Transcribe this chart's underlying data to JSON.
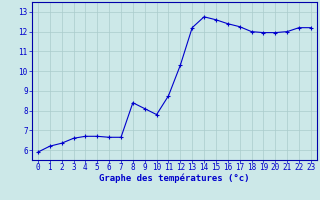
{
  "x": [
    0,
    1,
    2,
    3,
    4,
    5,
    6,
    7,
    8,
    9,
    10,
    11,
    12,
    13,
    14,
    15,
    16,
    17,
    18,
    19,
    20,
    21,
    22,
    23
  ],
  "y": [
    5.9,
    6.2,
    6.35,
    6.6,
    6.7,
    6.7,
    6.65,
    6.65,
    8.4,
    8.1,
    7.8,
    8.75,
    10.3,
    12.2,
    12.75,
    12.6,
    12.4,
    12.25,
    12.0,
    11.95,
    11.95,
    12.0,
    12.2,
    12.2
  ],
  "line_color": "#0000cc",
  "marker": "+",
  "marker_size": 3,
  "bg_color": "#cce8e8",
  "grid_color": "#aacccc",
  "xlabel": "Graphe des températures (°c)",
  "xlabel_color": "#0000cc",
  "xlabel_fontsize": 6.5,
  "tick_color": "#0000cc",
  "tick_fontsize": 5.5,
  "ylim": [
    5.5,
    13.5
  ],
  "xlim": [
    -0.5,
    23.5
  ],
  "yticks": [
    6,
    7,
    8,
    9,
    10,
    11,
    12,
    13
  ],
  "xticks": [
    0,
    1,
    2,
    3,
    4,
    5,
    6,
    7,
    8,
    9,
    10,
    11,
    12,
    13,
    14,
    15,
    16,
    17,
    18,
    19,
    20,
    21,
    22,
    23
  ]
}
